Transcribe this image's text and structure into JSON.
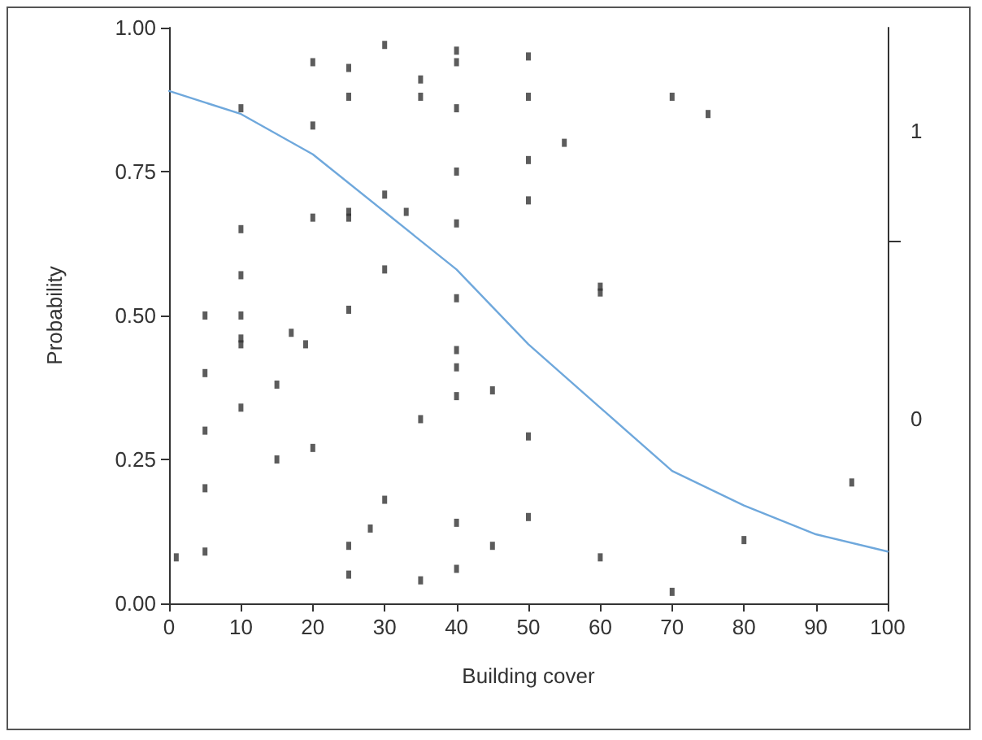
{
  "chart_data": {
    "type": "scatter",
    "xlabel": "Building cover",
    "ylabel": "Probability",
    "xlim": [
      0,
      100
    ],
    "xticks": [
      0,
      10,
      20,
      30,
      40,
      50,
      60,
      70,
      80,
      90,
      100
    ],
    "ylim": [
      0,
      1
    ],
    "yticks": [
      {
        "value": 0,
        "label": "0.00"
      },
      {
        "value": 0.25,
        "label": "0.25"
      },
      {
        "value": 0.5,
        "label": "0.50"
      },
      {
        "value": 0.75,
        "label": "0.75"
      },
      {
        "value": 1,
        "label": "1.00"
      }
    ],
    "y2lim": [
      0,
      1
    ],
    "y2ticks": [
      {
        "value": 0.32,
        "label": "0"
      },
      {
        "value": 0.63,
        "label": null
      },
      {
        "value": 0.82,
        "label": "1"
      }
    ],
    "grid": false,
    "series": [
      {
        "color": "#333333",
        "marker": "square",
        "x": [
          1,
          5,
          5,
          5,
          5,
          5,
          10,
          10,
          10,
          10,
          10,
          10,
          10,
          15,
          15,
          17,
          19,
          20,
          20,
          20,
          20,
          25,
          25,
          25,
          25,
          25,
          25,
          25,
          28,
          30,
          30,
          30,
          30,
          33,
          35,
          35,
          35,
          35,
          40,
          40,
          40,
          40,
          40,
          40,
          40,
          40,
          40,
          40,
          40,
          45,
          45,
          50,
          50,
          50,
          50,
          50,
          50,
          55,
          60,
          60,
          60,
          70,
          70,
          75,
          80,
          95
        ],
        "values": [
          0.08,
          0.09,
          0.2,
          0.3,
          0.4,
          0.5,
          0.86,
          0.65,
          0.57,
          0.5,
          0.46,
          0.45,
          0.34,
          0.38,
          0.25,
          0.47,
          0.45,
          0.94,
          0.83,
          0.67,
          0.27,
          0.93,
          0.88,
          0.68,
          0.67,
          0.51,
          0.1,
          0.05,
          0.13,
          0.97,
          0.71,
          0.58,
          0.18,
          0.68,
          0.91,
          0.88,
          0.32,
          0.04,
          0.96,
          0.94,
          0.86,
          0.75,
          0.66,
          0.53,
          0.44,
          0.41,
          0.36,
          0.14,
          0.06,
          0.37,
          0.1,
          0.95,
          0.88,
          0.77,
          0.7,
          0.29,
          0.15,
          0.8,
          0.55,
          0.54,
          0.08,
          0.88,
          0.02,
          0.85,
          0.11,
          0.21
        ]
      },
      {
        "type": "line",
        "color": "#6fa8dc",
        "marker": "none",
        "line_style": "solid",
        "x": [
          0,
          10,
          20,
          30,
          40,
          50,
          60,
          70,
          80,
          90,
          100
        ],
        "values": [
          0.89,
          0.85,
          0.78,
          0.68,
          0.58,
          0.45,
          0.34,
          0.23,
          0.17,
          0.12,
          0.09
        ]
      }
    ]
  }
}
